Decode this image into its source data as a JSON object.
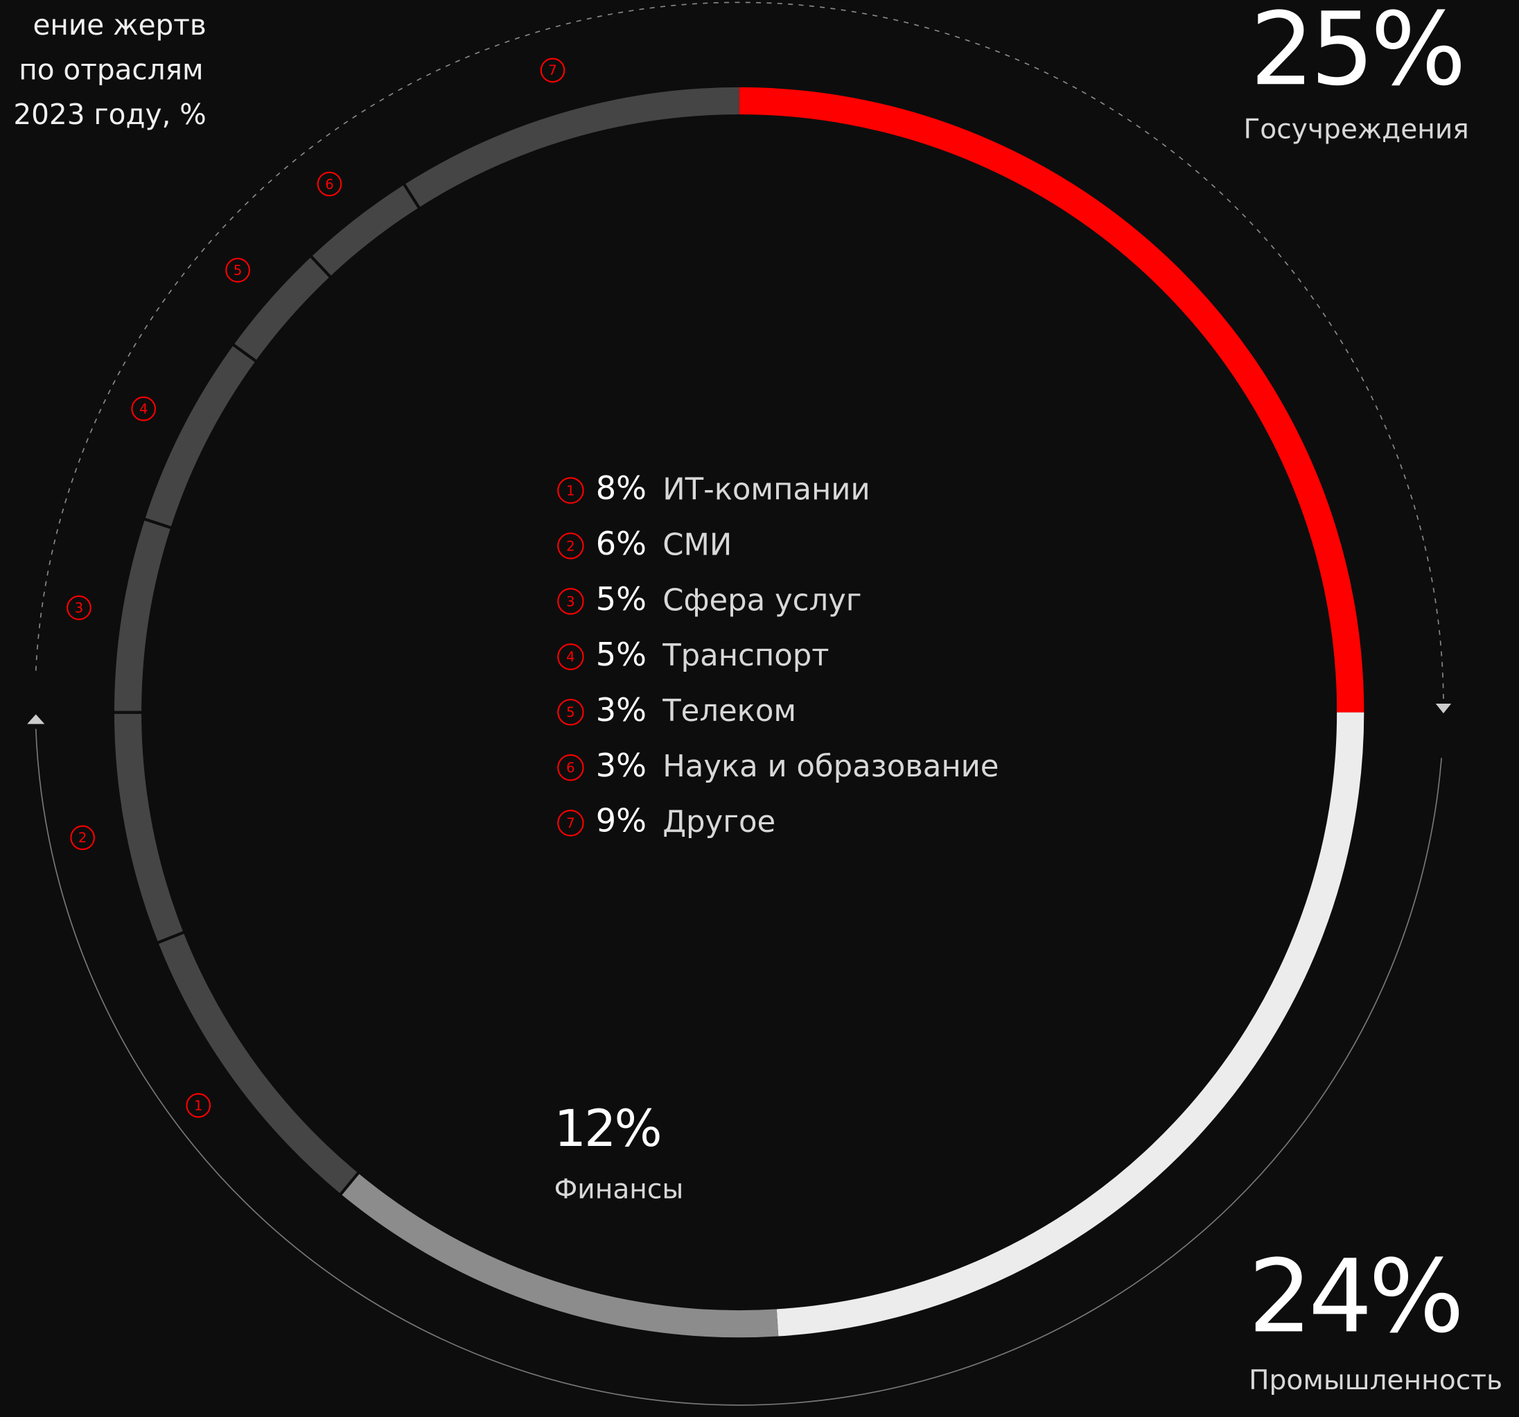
{
  "chart_data": {
    "type": "donut",
    "title": [
      "ение жертв",
      "по отраслям",
      "2023 году, %"
    ],
    "categories": [
      "Госучреждения",
      "Промышленность",
      "Финансы",
      "ИТ-компании",
      "СМИ",
      "Сфера услуг",
      "Транспорт",
      "Телеком",
      "Наука и образование",
      "Другое"
    ],
    "values": [
      25,
      24,
      12,
      8,
      6,
      5,
      5,
      3,
      3,
      9
    ],
    "value_labels": [
      "25%",
      "24%",
      "12%",
      "8%",
      "6%",
      "5%",
      "5%",
      "3%",
      "3%",
      "9%"
    ],
    "colors": [
      "#ff0000",
      "#ececec",
      "#8c8c8c",
      "#454545",
      "#454545",
      "#454545",
      "#454545",
      "#454545",
      "#454545",
      "#454545"
    ],
    "markers": [
      null,
      null,
      null,
      "1",
      "2",
      "3",
      "4",
      "5",
      "6",
      "7"
    ]
  }
}
